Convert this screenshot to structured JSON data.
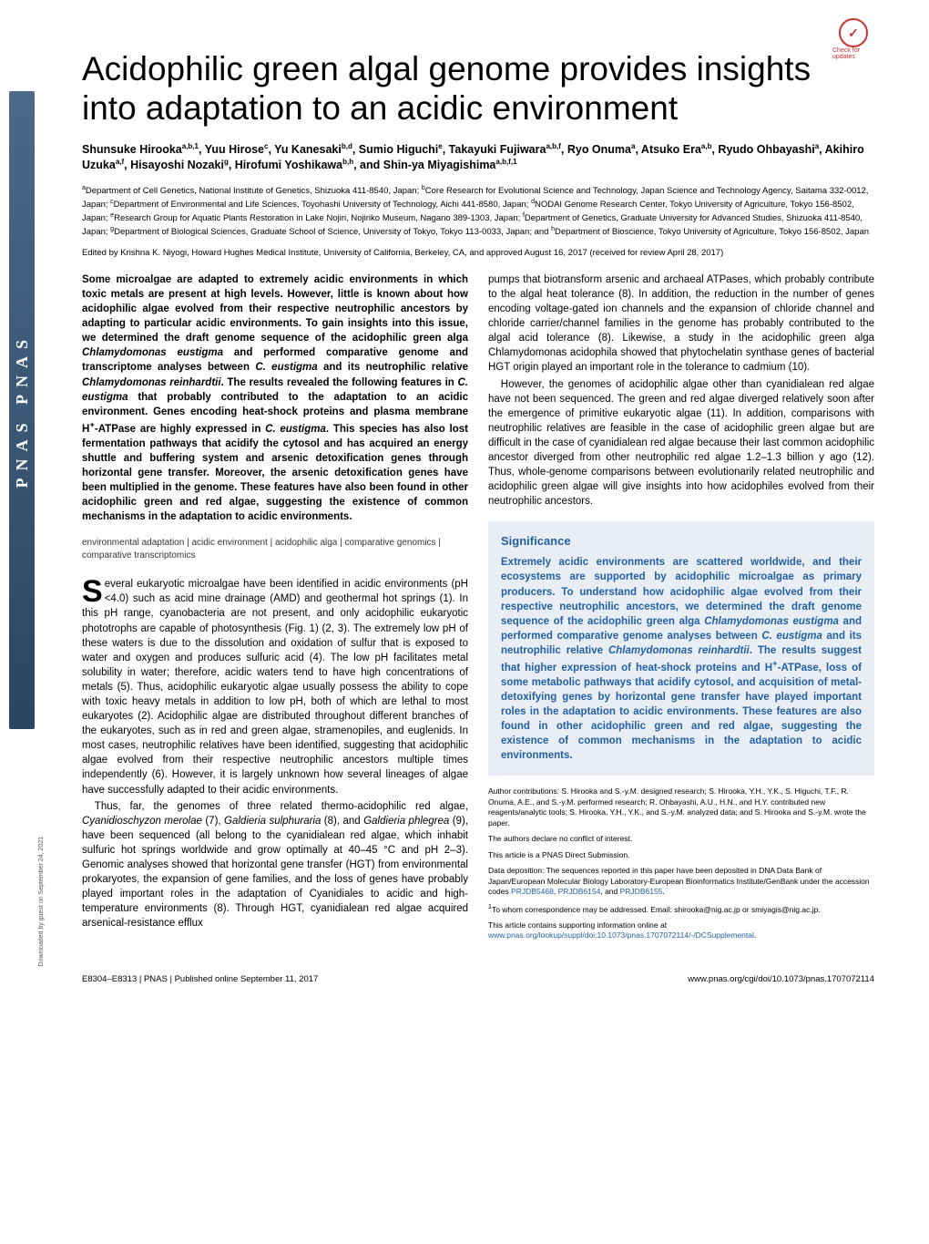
{
  "brand": "PNAS  PNAS",
  "updates_badge": {
    "icon": "✓",
    "label": "Check for updates"
  },
  "title": "Acidophilic green algal genome provides insights into adaptation to an acidic environment",
  "authors_html": "Shunsuke Hirooka<sup>a,b,1</sup>, Yuu Hirose<sup>c</sup>, Yu Kanesaki<sup>b,d</sup>, Sumio Higuchi<sup>e</sup>, Takayuki Fujiwara<sup>a,b,f</sup>, Ryo Onuma<sup>a</sup>, Atsuko Era<sup>a,b</sup>, Ryudo Ohbayashi<sup>a</sup>, Akihiro Uzuka<sup>a,f</sup>, Hisayoshi Nozaki<sup>g</sup>, Hirofumi Yoshikawa<sup>b,h</sup>, and Shin-ya Miyagishima<sup>a,b,f,1</sup>",
  "affiliations_html": "<sup>a</sup>Department of Cell Genetics, National Institute of Genetics, Shizuoka 411-8540, Japan; <sup>b</sup>Core Research for Evolutional Science and Technology, Japan Science and Technology Agency, Saitama 332-0012, Japan; <sup>c</sup>Department of Environmental and Life Sciences, Toyohashi University of Technology, Aichi 441-8580, Japan; <sup>d</sup>NODAI Genome Research Center, Tokyo University of Agriculture, Tokyo 156-8502, Japan; <sup>e</sup>Research Group for Aquatic Plants Restoration in Lake Nojiri, Nojiriko Museum, Nagano 389-1303, Japan; <sup>f</sup>Department of Genetics, Graduate University for Advanced Studies, Shizuoka 411-8540, Japan; <sup>g</sup>Department of Biological Sciences, Graduate School of Science, University of Tokyo, Tokyo 113-0033, Japan; and <sup>h</sup>Department of Bioscience, Tokyo University of Agriculture, Tokyo 156-8502, Japan",
  "edited": "Edited by Krishna K. Niyogi, Howard Hughes Medical Institute, University of California, Berkeley, CA, and approved August 16, 2017 (received for review April 28, 2017)",
  "abstract_html": "Some microalgae are adapted to extremely acidic environments in which toxic metals are present at high levels. However, little is known about how acidophilic algae evolved from their respective neutrophilic ancestors by adapting to particular acidic environments. To gain insights into this issue, we determined the draft genome sequence of the acidophilic green alga <em>Chlamydomonas eustigma</em> and performed comparative genome and transcriptome analyses between <em>C. eustigma</em> and its neutrophilic relative <em>Chlamydomonas reinhardtii</em>. The results revealed the following features in <em>C. eustigma</em> that probably contributed to the adaptation to an acidic environment. Genes encoding heat-shock proteins and plasma membrane H<sup>+</sup>-ATPase are highly expressed in <em>C. eustigma</em>. This species has also lost fermentation pathways that acidify the cytosol and has acquired an energy shuttle and buffering system and arsenic detoxification genes through horizontal gene transfer. Moreover, the arsenic detoxification genes have been multiplied in the genome. These features have also been found in other acidophilic green and red algae, suggesting the existence of common mechanisms in the adaptation to acidic environments.",
  "keywords": "environmental adaptation | acidic environment | acidophilic alga | comparative genomics | comparative transcriptomics",
  "body_col1_p1_html": "everal eukaryotic microalgae have been identified in acidic environments (pH &lt;4.0) such as acid mine drainage (AMD) and geothermal hot springs (1). In this pH range, cyanobacteria are not present, and only acidophilic eukaryotic phototrophs are capable of photosynthesis (Fig. 1) (2, 3). The extremely low pH of these waters is due to the dissolution and oxidation of sulfur that is exposed to water and oxygen and produces sulfuric acid (4). The low pH facilitates metal solubility in water; therefore, acidic waters tend to have high concentrations of metals (5). Thus, acidophilic eukaryotic algae usually possess the ability to cope with toxic heavy metals in addition to low pH, both of which are lethal to most eukaryotes (2). Acidophilic algae are distributed throughout different branches of the eukaryotes, such as in red and green algae, stramenopiles, and euglenids. In most cases, neutrophilic relatives have been identified, suggesting that acidophilic algae evolved from their respective neutrophilic ancestors multiple times independently (6). However, it is largely unknown how several lineages of algae have successfully adapted to their acidic environments.",
  "body_col1_p2_html": "Thus, far, the genomes of three related thermo-acidophilic red algae, <em>Cyanidioschyzon merolae</em> (7), <em>Galdieria sulphuraria</em> (8), and <em>Galdieria phlegrea</em> (9), have been sequenced (all belong to the cyanidialean red algae, which inhabit sulfuric hot springs worldwide and grow optimally at 40–45 °C and pH 2–3). Genomic analyses showed that horizontal gene transfer (HGT) from environmental prokaryotes, the expansion of gene families, and the loss of genes have probably played important roles in the adaptation of Cyanidiales to acidic and high-temperature environments (8). Through HGT, cyanidialean red algae acquired arsenical-resistance efflux",
  "body_col2_p1": "pumps that biotransform arsenic and archaeal ATPases, which probably contribute to the algal heat tolerance (8). In addition, the reduction in the number of genes encoding voltage-gated ion channels and the expansion of chloride channel and chloride carrier/channel families in the genome has probably contributed to the algal acid tolerance (8). Likewise, a study in the acidophilic green alga Chlamydomonas acidophila showed that phytochelatin synthase genes of bacterial HGT origin played an important role in the tolerance to cadmium (10).",
  "body_col2_p2": "However, the genomes of acidophilic algae other than cyanidialean red algae have not been sequenced. The green and red algae diverged relatively soon after the emergence of primitive eukaryotic algae (11). In addition, comparisons with neutrophilic relatives are feasible in the case of acidophilic green algae but are difficult in the case of cyanidialean red algae because their last common acidophilic ancestor diverged from other neutrophilic red algae 1.2–1.3 billion y ago (12). Thus, whole-genome comparisons between evolutionarily related neutrophilic and acidophilic green algae will give insights into how acidophiles evolved from their neutrophilic ancestors.",
  "significance": {
    "heading": "Significance",
    "text_html": "Extremely acidic environments are scattered worldwide, and their ecosystems are supported by acidophilic microalgae as primary producers. To understand how acidophilic algae evolved from their respective neutrophilic ancestors, we determined the draft genome sequence of the acidophilic green alga <em>Chlamydomonas eustigma</em> and performed comparative genome analyses between <em>C. eustigma</em> and its neutrophilic relative <em>Chlamydomonas reinhardtii</em>. The results suggest that higher expression of heat-shock proteins and H<sup>+</sup>-ATPase, loss of some metabolic pathways that acidify cytosol, and acquisition of metal-detoxifying genes by horizontal gene transfer have played important roles in the adaptation to acidic environments. These features are also found in other acidophilic green and red algae, suggesting the existence of common mechanisms in the adaptation to acidic environments."
  },
  "meta": {
    "contributions": "Author contributions: S. Hirooka and S.-y.M. designed research; S. Hirooka, Y.H., Y.K., S. Higuchi, T.F., R. Onuma, A.E., and S.-y.M. performed research; R. Ohbayashi, A.U., H.N., and H.Y. contributed new reagents/analytic tools; S. Hirooka, Y.H., Y.K., and S.-y.M. analyzed data; and S. Hirooka and S.-y.M. wrote the paper.",
    "conflict": "The authors declare no conflict of interest.",
    "submission": "This article is a PNAS Direct Submission.",
    "deposition_html": "Data deposition: The sequences reported in this paper have been deposited in DNA Data Bank of Japan/European Molecular Biology Laboratory-European Bioinformatics Institute/GenBank under the accession codes <a>PRJDB5468</a>, <a>PRJDB6154</a>, and <a>PRJDB6155</a>.",
    "correspondence_html": "<sup>1</sup>To whom correspondence may be addressed. Email: shirooka@nig.ac.jp or smiyagis@nig.ac.jp.",
    "supporting_html": "This article contains supporting information online at <a>www.pnas.org/lookup/suppl/doi:10.1073/pnas.1707072114/-/DCSupplemental</a>."
  },
  "footer": {
    "left": "E8304–E8313  |  PNAS  |  Published online September 11, 2017",
    "right": "www.pnas.org/cgi/doi/10.1073/pnas.1707072114"
  },
  "download_note": "Downloaded by guest on September 24, 2021",
  "colors": {
    "link": "#2360a5",
    "sig_bg": "#e8eef4",
    "brand_grad_top": "#4a6a8a",
    "brand_grad_bot": "#2b4560"
  }
}
